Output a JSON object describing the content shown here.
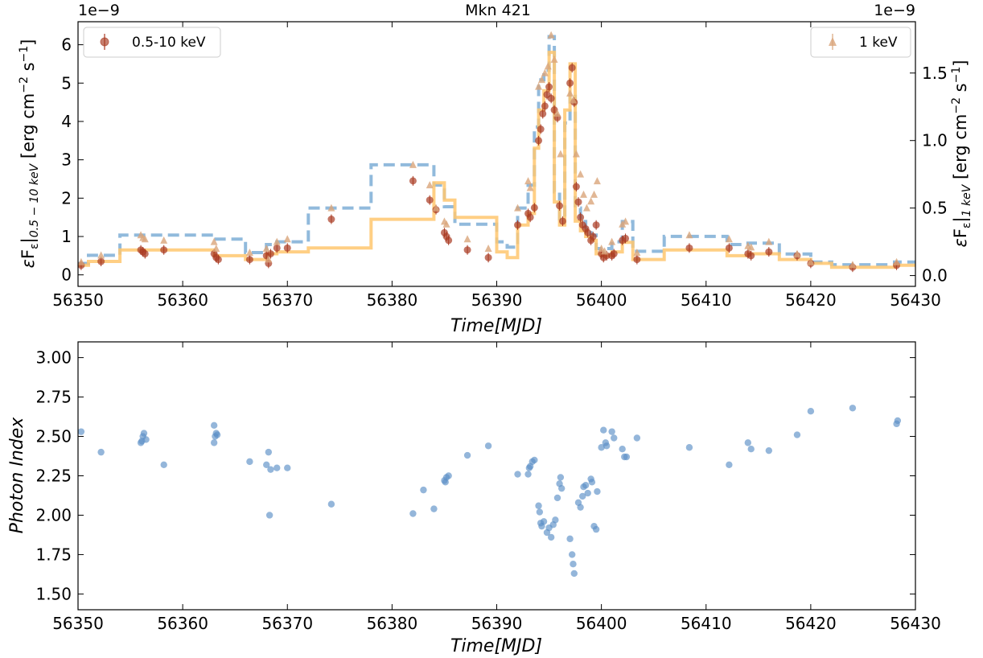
{
  "chart_data": [
    {
      "type": "line",
      "title": "Mkn 421",
      "xlabel": "Time[MJD]",
      "ylabel_left": "εF_ε|0.5−10 keV [erg cm^−2 s^−1]",
      "ylabel_right": "εF_ε|1 keV [erg cm^−2 s^−1]",
      "xlim": [
        56350,
        56430
      ],
      "ylim_left": [
        -0.3,
        6.6
      ],
      "ylim_right": [
        -0.08,
        1.88
      ],
      "exponent_left": "1e−9",
      "exponent_right": "1e−9",
      "xticks": [
        "56350",
        "56360",
        "56370",
        "56380",
        "56390",
        "56400",
        "56410",
        "56420",
        "56430"
      ],
      "yticks_left": [
        "0",
        "1",
        "2",
        "3",
        "4",
        "5",
        "6"
      ],
      "yticks_right": [
        "0.0",
        "0.5",
        "1.0",
        "1.5"
      ],
      "legend_left": {
        "label": "0.5-10 keV",
        "placement": "top-left",
        "color": "#a93a22"
      },
      "legend_right": {
        "label": "1 keV",
        "placement": "top-right",
        "color": "#d9a57a"
      },
      "series": [
        {
          "kind": "step",
          "axis": "left",
          "color": "#ffc76e",
          "edges": [
            56350,
            56351,
            56354,
            56363,
            56366,
            56368,
            56369,
            56372,
            56378,
            56384,
            56385,
            56386,
            56390,
            56391,
            56392,
            56393,
            56393.6,
            56394,
            56394.5,
            56395,
            56395.5,
            56396,
            56396.5,
            56397,
            56397.5,
            56398,
            56398.5,
            56399,
            56399.5,
            56400,
            56401,
            56402,
            56403,
            56406,
            56412,
            56414,
            56417,
            56420,
            56422,
            56426,
            56428,
            56430
          ],
          "values": [
            0.25,
            0.35,
            0.65,
            0.5,
            0.4,
            0.55,
            0.6,
            0.7,
            1.45,
            2.4,
            1.95,
            1.5,
            0.6,
            0.45,
            1.3,
            1.6,
            3.3,
            4.3,
            4.8,
            5.8,
            1.9,
            1.3,
            4.3,
            5.5,
            1.4,
            1.15,
            1.0,
            0.9,
            0.55,
            0.5,
            0.6,
            0.85,
            0.4,
            0.65,
            0.5,
            0.55,
            0.4,
            0.3,
            0.2,
            0.2,
            0.25
          ]
        },
        {
          "kind": "step",
          "axis": "right",
          "color": "#7eaed6",
          "edges": [
            56350,
            56351,
            56354,
            56363,
            56366,
            56368,
            56369,
            56372,
            56378,
            56384,
            56385,
            56386,
            56390,
            56391,
            56392,
            56393,
            56393.6,
            56394,
            56394.5,
            56395,
            56395.5,
            56396,
            56396.5,
            56397,
            56397.5,
            56398,
            56398.5,
            56399,
            56399.5,
            56400,
            56401,
            56402,
            56403,
            56406,
            56412,
            56414,
            56417,
            56420,
            56422,
            56426,
            56428,
            56430
          ],
          "values": [
            0.09,
            0.15,
            0.3,
            0.27,
            0.17,
            0.23,
            0.25,
            0.5,
            0.82,
            0.67,
            0.51,
            0.38,
            0.25,
            0.21,
            0.5,
            0.67,
            1.1,
            1.45,
            1.52,
            1.77,
            0.62,
            0.42,
            1.13,
            1.35,
            0.5,
            0.4,
            0.34,
            0.3,
            0.2,
            0.2,
            0.25,
            0.4,
            0.18,
            0.29,
            0.23,
            0.24,
            0.16,
            0.1,
            0.08,
            0.08,
            0.1
          ]
        },
        {
          "kind": "scatter",
          "axis": "left",
          "name": "0.5-10 keV",
          "color": "#a93a22",
          "x": [
            56350.3,
            56352.2,
            56356.0,
            56356.2,
            56356.4,
            56358.2,
            56363.0,
            56363.2,
            56363.4,
            56366.4,
            56368.0,
            56368.2,
            56368.4,
            56369.0,
            56370.0,
            56374.2,
            56382.0,
            56383.6,
            56384.2,
            56385.0,
            56385.2,
            56385.4,
            56387.2,
            56389.2,
            56392.0,
            56393.0,
            56393.2,
            56393.6,
            56394.0,
            56394.2,
            56394.4,
            56394.6,
            56394.8,
            56395.0,
            56395.2,
            56395.5,
            56395.8,
            56396.0,
            56396.3,
            56397.0,
            56397.2,
            56397.4,
            56397.6,
            56397.8,
            56398.0,
            56398.2,
            56398.5,
            56398.7,
            56399.0,
            56399.2,
            56399.5,
            56400.0,
            56400.2,
            56400.5,
            56401.0,
            56401.2,
            56402.0,
            56402.3,
            56403.4,
            56408.4,
            56412.2,
            56414.0,
            56414.3,
            56416.0,
            56418.7,
            56420.0,
            56424.0,
            56428.2
          ],
          "y": [
            0.25,
            0.35,
            0.65,
            0.6,
            0.55,
            0.65,
            0.55,
            0.45,
            0.4,
            0.4,
            0.5,
            0.3,
            0.55,
            0.7,
            0.7,
            1.45,
            2.45,
            1.95,
            1.7,
            1.1,
            1.0,
            0.9,
            0.65,
            0.45,
            1.3,
            1.6,
            1.5,
            1.75,
            3.5,
            3.8,
            4.2,
            4.4,
            4.7,
            4.9,
            4.6,
            4.3,
            4.1,
            1.8,
            1.4,
            5.0,
            5.4,
            4.5,
            2.3,
            1.9,
            1.5,
            1.3,
            1.2,
            1.1,
            0.9,
            1.0,
            1.3,
            0.55,
            0.45,
            0.5,
            0.5,
            0.55,
            0.9,
            0.95,
            0.4,
            0.7,
            0.7,
            0.55,
            0.5,
            0.6,
            0.5,
            0.3,
            0.2,
            0.25
          ]
        },
        {
          "kind": "scatter",
          "axis": "right",
          "name": "1 keV",
          "color": "#d9a57a",
          "x": [
            56350.3,
            56352.2,
            56356.0,
            56356.2,
            56356.4,
            56358.2,
            56363.0,
            56363.2,
            56366.4,
            56368.0,
            56368.2,
            56369.0,
            56370.0,
            56374.2,
            56382.0,
            56383.6,
            56384.2,
            56385.0,
            56385.2,
            56387.2,
            56389.2,
            56392.0,
            56393.0,
            56393.2,
            56394.0,
            56394.3,
            56394.6,
            56394.9,
            56395.2,
            56395.5,
            56395.8,
            56396.1,
            56397.0,
            56397.3,
            56397.6,
            56398.0,
            56398.3,
            56398.6,
            56399.0,
            56399.3,
            56399.6,
            56400.0,
            56400.3,
            56401.0,
            56402.0,
            56402.3,
            56403.4,
            56408.4,
            56412.2,
            56414.0,
            56414.3,
            56416.0,
            56418.7,
            56420.0,
            56424.0,
            56428.2
          ],
          "y": [
            0.1,
            0.15,
            0.3,
            0.28,
            0.27,
            0.26,
            0.25,
            0.2,
            0.17,
            0.2,
            0.12,
            0.25,
            0.27,
            0.5,
            0.82,
            0.67,
            0.5,
            0.4,
            0.38,
            0.27,
            0.2,
            0.5,
            0.7,
            0.65,
            1.4,
            1.45,
            1.5,
            1.55,
            1.78,
            1.6,
            1.2,
            0.9,
            1.35,
            1.3,
            0.9,
            0.75,
            0.6,
            0.5,
            0.55,
            0.6,
            0.7,
            0.2,
            0.18,
            0.25,
            0.38,
            0.4,
            0.17,
            0.3,
            0.27,
            0.22,
            0.21,
            0.25,
            0.16,
            0.1,
            0.08,
            0.1
          ]
        }
      ]
    },
    {
      "type": "scatter",
      "title": "",
      "xlabel": "Time[MJD]",
      "ylabel": "Photon Index",
      "xlim": [
        56350,
        56430
      ],
      "ylim": [
        1.4,
        3.1
      ],
      "xticks": [
        "56350",
        "56360",
        "56370",
        "56380",
        "56390",
        "56400",
        "56410",
        "56420",
        "56430"
      ],
      "yticks": [
        "1.50",
        "1.75",
        "2.00",
        "2.25",
        "2.50",
        "2.75",
        "3.00"
      ],
      "series": [
        {
          "color": "#5b8fc6",
          "x": [
            56350.3,
            56352.2,
            56356.0,
            56356.2,
            56356.3,
            56356.5,
            56356.1,
            56358.2,
            56363.0,
            56363.1,
            56363.2,
            56363.3,
            56363.0,
            56366.4,
            56368.0,
            56368.2,
            56368.4,
            56368.3,
            56369.0,
            56370.0,
            56374.2,
            56382.0,
            56383.0,
            56384.0,
            56385.0,
            56385.2,
            56385.4,
            56385.1,
            56387.2,
            56389.2,
            56392.0,
            56393.0,
            56393.1,
            56393.2,
            56393.4,
            56393.6,
            56394.0,
            56394.1,
            56394.2,
            56394.3,
            56394.5,
            56394.8,
            56395.0,
            56395.2,
            56395.4,
            56395.6,
            56395.8,
            56396.0,
            56396.1,
            56396.2,
            56397.0,
            56397.2,
            56397.3,
            56397.4,
            56397.8,
            56398.0,
            56398.2,
            56398.3,
            56398.5,
            56398.7,
            56399.0,
            56399.1,
            56399.3,
            56399.5,
            56399.6,
            56400.0,
            56400.2,
            56400.4,
            56400.5,
            56401.0,
            56401.2,
            56402.0,
            56402.2,
            56402.4,
            56403.4,
            56408.4,
            56412.2,
            56414.0,
            56414.3,
            56416.0,
            56418.7,
            56420.0,
            56424.0,
            56428.2,
            56428.3
          ],
          "y": [
            2.53,
            2.4,
            2.46,
            2.5,
            2.52,
            2.48,
            2.47,
            2.32,
            2.46,
            2.5,
            2.52,
            2.51,
            2.57,
            2.34,
            2.32,
            2.4,
            2.29,
            2.0,
            2.3,
            2.3,
            2.07,
            2.01,
            2.16,
            2.04,
            2.22,
            2.24,
            2.25,
            2.21,
            2.38,
            2.44,
            2.26,
            2.26,
            2.3,
            2.31,
            2.34,
            2.35,
            2.06,
            2.02,
            1.95,
            1.93,
            1.96,
            1.89,
            1.92,
            1.86,
            1.94,
            1.97,
            2.11,
            2.2,
            2.24,
            2.17,
            1.85,
            1.75,
            1.69,
            1.63,
            2.08,
            2.05,
            2.12,
            2.18,
            2.19,
            2.14,
            2.23,
            2.21,
            1.93,
            1.91,
            2.15,
            2.43,
            2.54,
            2.46,
            2.44,
            2.53,
            2.49,
            2.42,
            2.37,
            2.37,
            2.49,
            2.43,
            2.32,
            2.46,
            2.42,
            2.41,
            2.51,
            2.66,
            2.68,
            2.58,
            2.6
          ]
        }
      ]
    }
  ]
}
